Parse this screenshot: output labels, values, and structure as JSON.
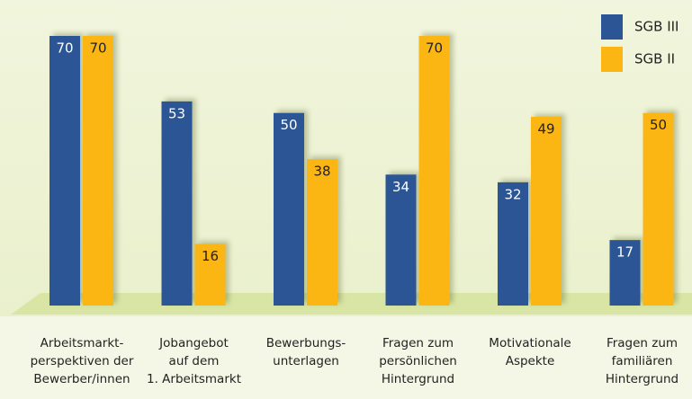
{
  "chart_data": {
    "type": "bar",
    "categories": [
      "Arbeitsmarkt-\nperspektiven der\nBewerber/innen",
      "Jobangebot\nauf dem\n1. Arbeitsmarkt",
      "Bewerbungs-\nunterlagen",
      "Fragen zum\npersönlichen\nHintergrund",
      "Motivationale\nAspekte",
      "Fragen zum\nfamiliären\nHintergrund"
    ],
    "series": [
      {
        "name": "SGB III",
        "color": "#2b5595",
        "values": [
          70,
          53,
          50,
          34,
          32,
          17
        ]
      },
      {
        "name": "SGB II",
        "color": "#fbb614",
        "values": [
          70,
          16,
          38,
          70,
          49,
          50
        ]
      }
    ],
    "ylim": [
      0,
      70
    ]
  }
}
